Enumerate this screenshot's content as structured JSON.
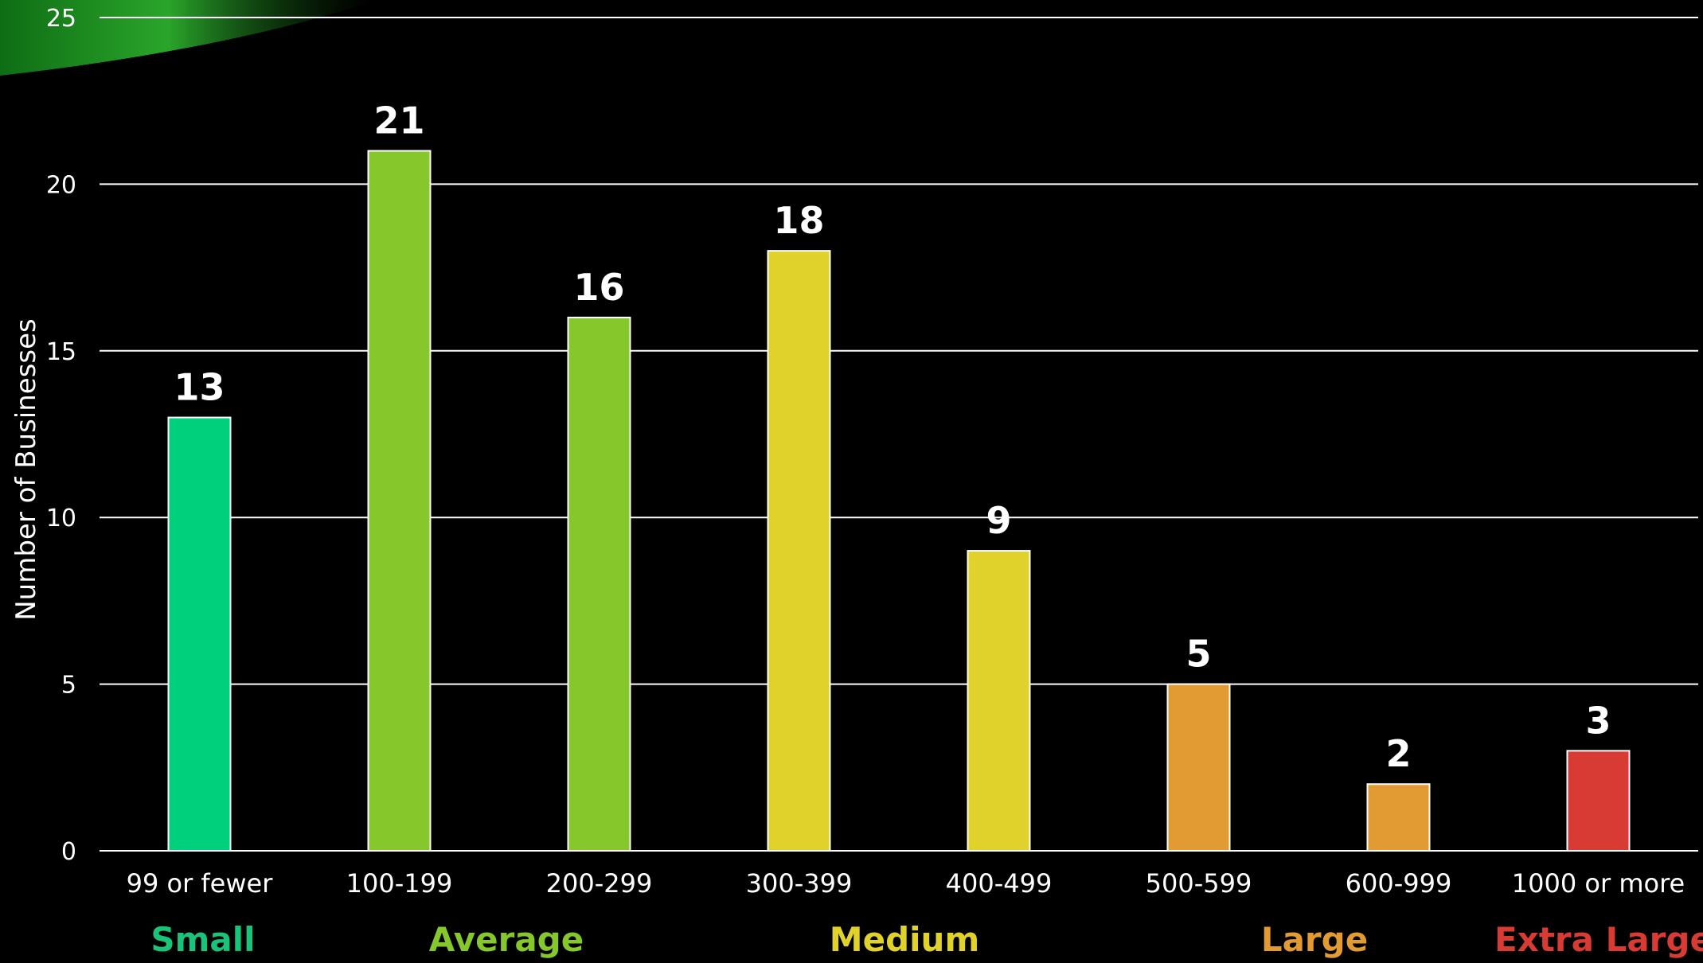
{
  "colors": {
    "background": "#000000",
    "gridline": "#ffffff",
    "bar_outline": "#ffffff",
    "swoosh_green": "#1f9a1f"
  },
  "chart_data": {
    "type": "bar",
    "categories": [
      "99 or fewer",
      "100-199",
      "200-299",
      "300-399",
      "400-499",
      "500-599",
      "600-999",
      "1000 or more"
    ],
    "values": [
      13,
      21,
      16,
      18,
      9,
      5,
      2,
      3
    ],
    "bar_colors": [
      "#00cf7b",
      "#86c72c",
      "#86c72c",
      "#e0d22a",
      "#e0d22a",
      "#e29a32",
      "#e29a32",
      "#d83a34"
    ],
    "title": "",
    "xlabel": "",
    "ylabel": "Number of Businesses",
    "ylim": [
      0,
      25
    ],
    "yticks": [
      0,
      5,
      10,
      15,
      20,
      25
    ],
    "grid": true,
    "data_labels": true,
    "groups": [
      {
        "label": "Small",
        "color": "#19c47a"
      },
      {
        "label": "Average",
        "color": "#86c72c"
      },
      {
        "label": "Medium",
        "color": "#e0d22a"
      },
      {
        "label": "Large",
        "color": "#e29a32"
      },
      {
        "label": "Extra Large",
        "color": "#d83a34"
      }
    ]
  }
}
